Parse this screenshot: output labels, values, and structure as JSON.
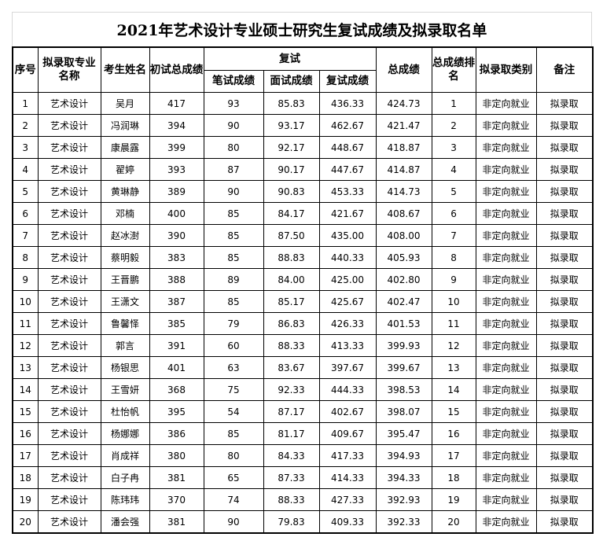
{
  "title": "2021年艺术设计专业硕士研究生复试成绩及拟录取名单",
  "headers": {
    "seq": "序号",
    "major": "拟录取专业名称",
    "name": "考生姓名",
    "prelim": "初试总成绩",
    "retest": "复试",
    "written": "笔试成绩",
    "interview": "面试成绩",
    "retest_score": "复试成绩",
    "total": "总成绩",
    "rank": "总成绩排名",
    "type": "拟录取类别",
    "note": "备注"
  },
  "rows": [
    [
      "1",
      "艺术设计",
      "吴月",
      "417",
      "93",
      "85.83",
      "436.33",
      "424.73",
      "1",
      "非定向就业",
      "拟录取"
    ],
    [
      "2",
      "艺术设计",
      "冯润琳",
      "394",
      "90",
      "93.17",
      "462.67",
      "421.47",
      "2",
      "非定向就业",
      "拟录取"
    ],
    [
      "3",
      "艺术设计",
      "康晨露",
      "399",
      "80",
      "92.17",
      "448.67",
      "418.87",
      "3",
      "非定向就业",
      "拟录取"
    ],
    [
      "4",
      "艺术设计",
      "翟婷",
      "393",
      "87",
      "90.17",
      "447.67",
      "414.87",
      "4",
      "非定向就业",
      "拟录取"
    ],
    [
      "5",
      "艺术设计",
      "黄琳静",
      "389",
      "90",
      "90.83",
      "453.33",
      "414.73",
      "5",
      "非定向就业",
      "拟录取"
    ],
    [
      "6",
      "艺术设计",
      "邓楠",
      "400",
      "85",
      "84.17",
      "421.67",
      "408.67",
      "6",
      "非定向就业",
      "拟录取"
    ],
    [
      "7",
      "艺术设计",
      "赵冰澍",
      "390",
      "85",
      "87.50",
      "435.00",
      "408.00",
      "7",
      "非定向就业",
      "拟录取"
    ],
    [
      "8",
      "艺术设计",
      "蔡明毅",
      "383",
      "85",
      "88.83",
      "440.33",
      "405.93",
      "8",
      "非定向就业",
      "拟录取"
    ],
    [
      "9",
      "艺术设计",
      "王晋鹏",
      "388",
      "89",
      "84.00",
      "425.00",
      "402.80",
      "9",
      "非定向就业",
      "拟录取"
    ],
    [
      "10",
      "艺术设计",
      "王潇文",
      "387",
      "85",
      "85.17",
      "425.67",
      "402.47",
      "10",
      "非定向就业",
      "拟录取"
    ],
    [
      "11",
      "艺术设计",
      "鲁馨怿",
      "385",
      "79",
      "86.83",
      "426.33",
      "401.53",
      "11",
      "非定向就业",
      "拟录取"
    ],
    [
      "12",
      "艺术设计",
      "郭言",
      "391",
      "60",
      "88.33",
      "413.33",
      "399.93",
      "12",
      "非定向就业",
      "拟录取"
    ],
    [
      "13",
      "艺术设计",
      "杨银思",
      "401",
      "63",
      "83.67",
      "397.67",
      "399.67",
      "13",
      "非定向就业",
      "拟录取"
    ],
    [
      "14",
      "艺术设计",
      "王雪妍",
      "368",
      "75",
      "92.33",
      "444.33",
      "398.53",
      "14",
      "非定向就业",
      "拟录取"
    ],
    [
      "15",
      "艺术设计",
      "杜怡帆",
      "395",
      "54",
      "87.17",
      "402.67",
      "398.07",
      "15",
      "非定向就业",
      "拟录取"
    ],
    [
      "16",
      "艺术设计",
      "杨娜娜",
      "386",
      "85",
      "81.17",
      "409.67",
      "395.47",
      "16",
      "非定向就业",
      "拟录取"
    ],
    [
      "17",
      "艺术设计",
      "肖成祥",
      "380",
      "80",
      "84.33",
      "417.33",
      "394.93",
      "17",
      "非定向就业",
      "拟录取"
    ],
    [
      "18",
      "艺术设计",
      "白子冉",
      "381",
      "65",
      "87.33",
      "414.33",
      "394.33",
      "18",
      "非定向就业",
      "拟录取"
    ],
    [
      "19",
      "艺术设计",
      "陈玮玮",
      "370",
      "74",
      "88.33",
      "427.33",
      "392.93",
      "19",
      "非定向就业",
      "拟录取"
    ],
    [
      "20",
      "艺术设计",
      "潘会强",
      "381",
      "90",
      "79.83",
      "409.33",
      "392.33",
      "20",
      "非定向就业",
      "拟录取"
    ]
  ]
}
